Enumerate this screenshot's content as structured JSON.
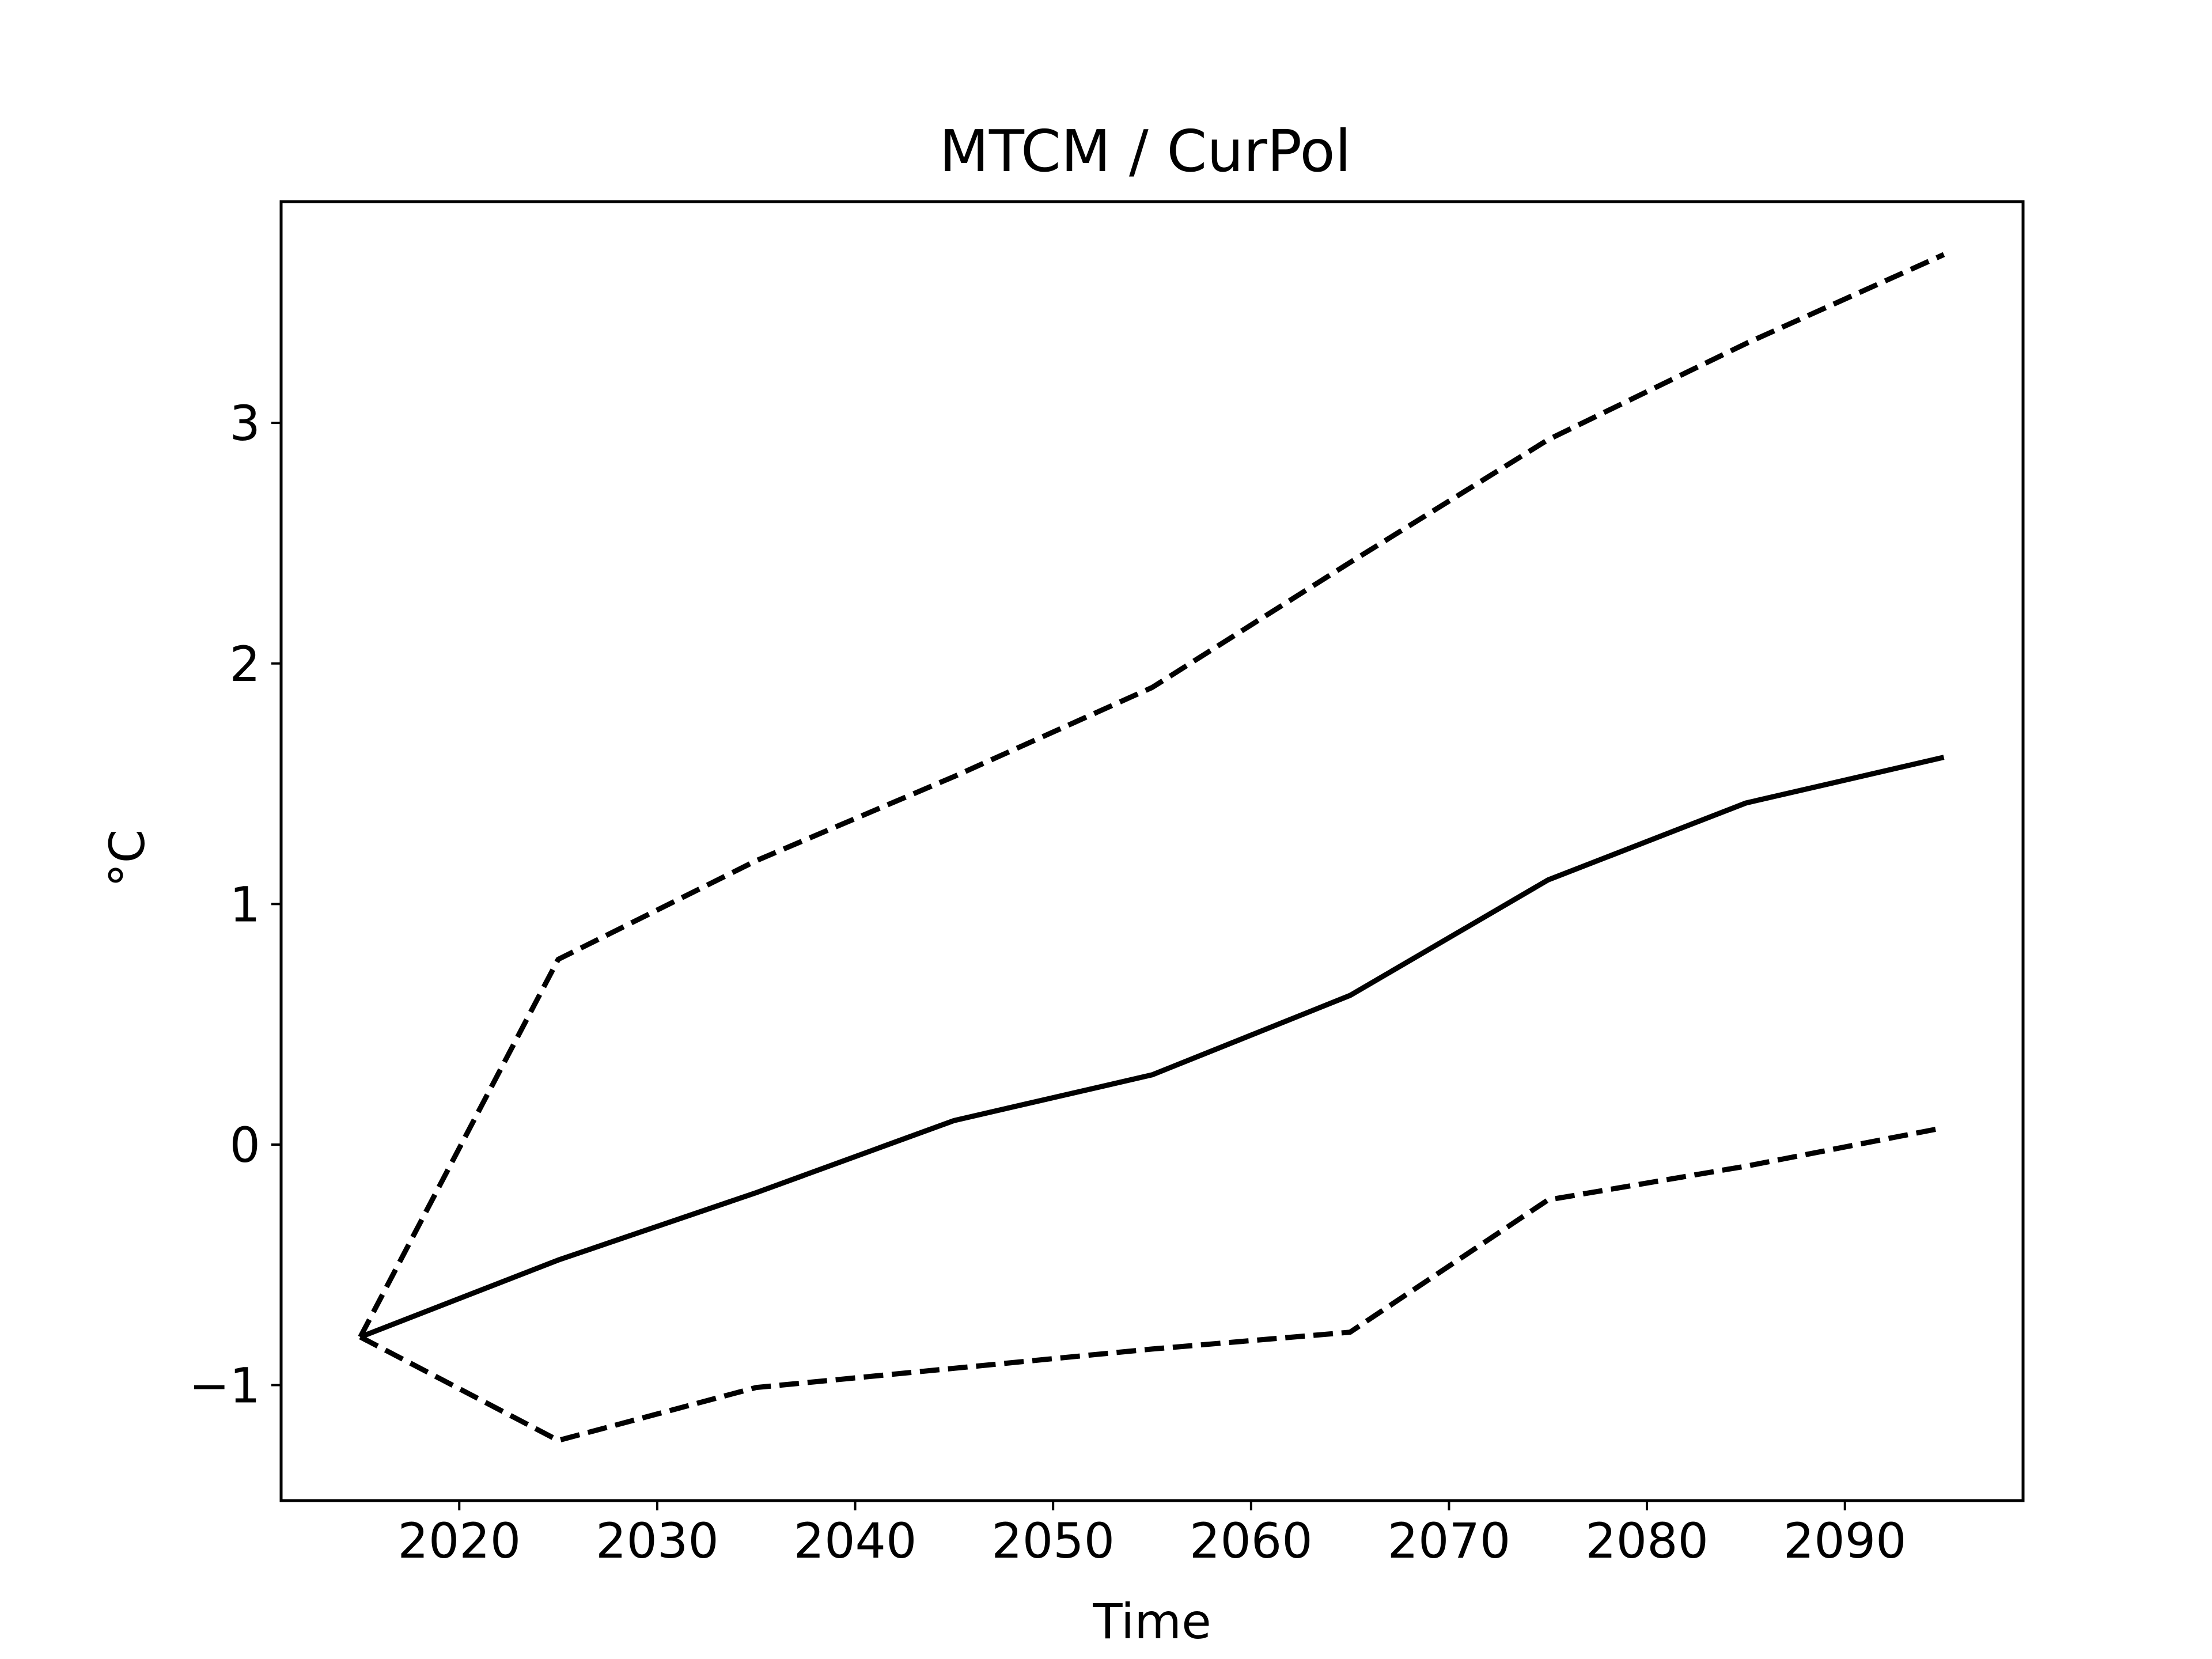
{
  "chart_data": {
    "type": "line",
    "title": "MTCM / CurPol",
    "xlabel": "Time",
    "ylabel": "°C",
    "xlim": [
      2011,
      2099
    ],
    "ylim": [
      -1.48,
      3.92
    ],
    "xticks": [
      2020,
      2030,
      2040,
      2050,
      2060,
      2070,
      2080,
      2090
    ],
    "yticks": [
      -1,
      0,
      1,
      2,
      3
    ],
    "ytick_labels": [
      "−1",
      "0",
      "1",
      "2",
      "3"
    ],
    "grid": false,
    "legend": false,
    "x": [
      2015,
      2025,
      2035,
      2045,
      2055,
      2065,
      2075,
      2085,
      2095
    ],
    "series": [
      {
        "style": "solid",
        "color": "#000000",
        "values": [
          -0.8,
          -0.48,
          -0.2,
          0.1,
          0.29,
          0.62,
          1.1,
          1.42,
          1.61
        ]
      },
      {
        "style": "dashed",
        "color": "#000000",
        "values": [
          -0.8,
          0.77,
          1.18,
          1.53,
          1.9,
          2.42,
          2.93,
          3.33,
          3.7
        ]
      },
      {
        "style": "dashed",
        "color": "#000000",
        "values": [
          -0.8,
          -1.23,
          -1.01,
          -0.93,
          -0.85,
          -0.78,
          -0.23,
          -0.09,
          0.07
        ]
      }
    ]
  }
}
